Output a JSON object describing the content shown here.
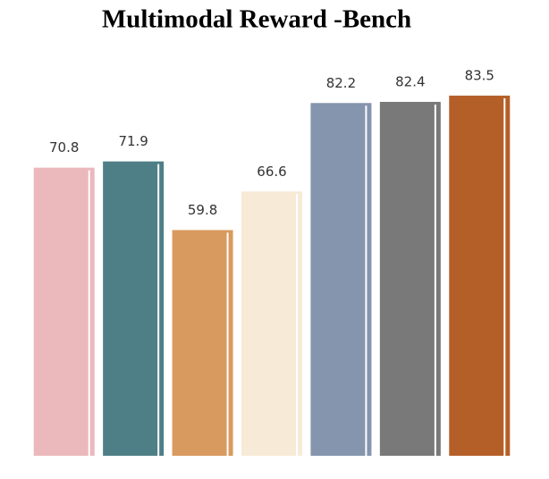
{
  "chart_data": {
    "type": "bar",
    "title": "Multimodal Reward -Bench",
    "categories": [
      null,
      null,
      null,
      null,
      null,
      null,
      null
    ],
    "values": [
      70.8,
      71.9,
      59.8,
      66.6,
      82.2,
      82.4,
      83.5
    ],
    "colors": [
      "#ebb8bc",
      "#4f7f86",
      "#d99a5f",
      "#f7ebd7",
      "#8595ad",
      "#797979",
      "#b55f28"
    ],
    "ylim": [
      20,
      85
    ]
  }
}
